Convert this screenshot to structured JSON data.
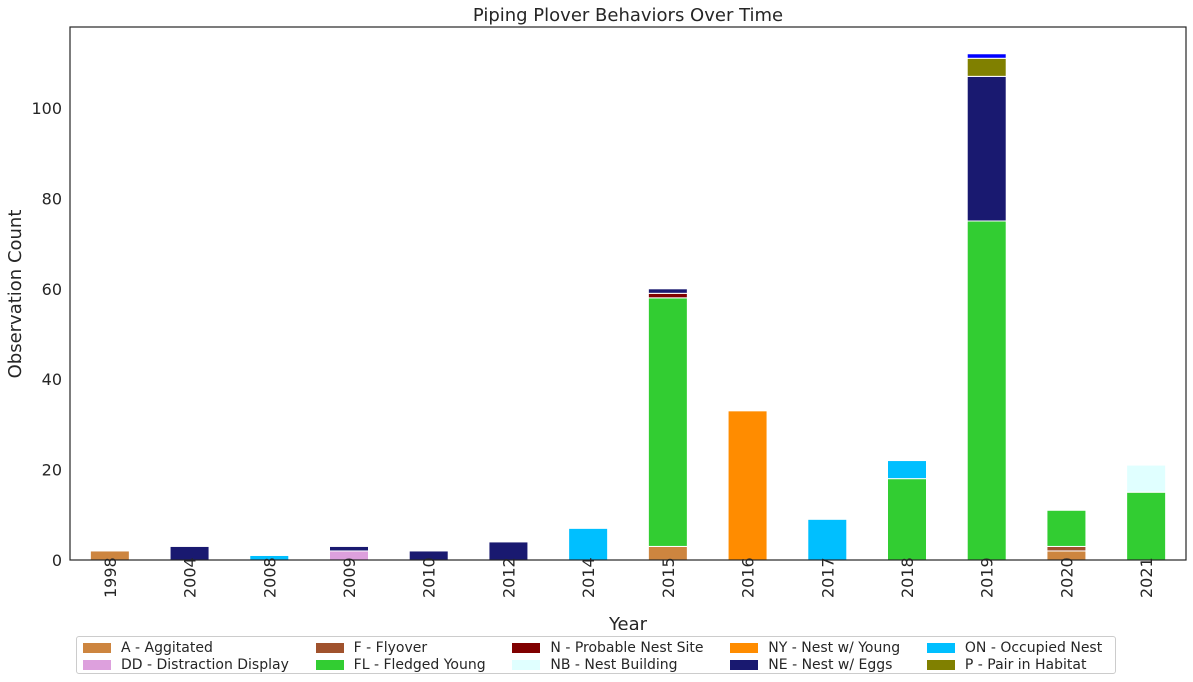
{
  "chart_data": {
    "type": "bar",
    "stacked": true,
    "title": "Piping Plover Behaviors Over Time",
    "xlabel": "Year",
    "ylabel": "Observation Count",
    "ylim": [
      0,
      118
    ],
    "yticks": [
      0,
      20,
      40,
      60,
      80,
      100
    ],
    "grid": false,
    "legend_position": "bottom",
    "categories": [
      "1998",
      "2004",
      "2008",
      "2009",
      "2010",
      "2012",
      "2014",
      "2015",
      "2016",
      "2017",
      "2018",
      "2019",
      "2020",
      "2021"
    ],
    "series": [
      {
        "name": "A - Aggitated",
        "color": "#cd853f",
        "values": [
          2,
          0,
          0,
          0,
          0,
          0,
          0,
          3,
          0,
          0,
          0,
          0,
          2,
          0
        ]
      },
      {
        "name": "DD - Distraction Display",
        "color": "#dda0dd",
        "values": [
          0,
          0,
          0,
          2,
          0,
          0,
          0,
          0,
          0,
          0,
          0,
          0,
          0,
          0
        ]
      },
      {
        "name": "F - Flyover",
        "color": "#a0522d",
        "values": [
          0,
          0,
          0,
          0,
          0,
          0,
          0,
          0,
          0,
          0,
          0,
          0,
          1,
          0
        ]
      },
      {
        "name": "FL - Fledged Young",
        "color": "#32cd32",
        "values": [
          0,
          0,
          0,
          0,
          0,
          0,
          0,
          55,
          0,
          0,
          18,
          75,
          8,
          15
        ]
      },
      {
        "name": "N - Probable Nest Site",
        "color": "#800000",
        "values": [
          0,
          0,
          0,
          0,
          0,
          0,
          0,
          1,
          0,
          0,
          0,
          0,
          0,
          0
        ]
      },
      {
        "name": "NB - Nest Building",
        "color": "#e0ffff",
        "values": [
          0,
          0,
          0,
          0,
          0,
          0,
          0,
          0,
          0,
          0,
          0,
          0,
          0,
          6
        ]
      },
      {
        "name": "NY - Nest w/ Young",
        "color": "#ff8c00",
        "values": [
          0,
          0,
          0,
          0,
          0,
          0,
          0,
          0,
          33,
          0,
          0,
          0,
          0,
          0
        ]
      },
      {
        "name": "NE - Nest w/ Eggs",
        "color": "#191970",
        "values": [
          0,
          3,
          0,
          1,
          2,
          4,
          0,
          1,
          0,
          0,
          0,
          32,
          0,
          0
        ]
      },
      {
        "name": "ON - Occupied Nest",
        "color": "#00bfff",
        "values": [
          0,
          0,
          1,
          0,
          0,
          0,
          7,
          0,
          0,
          9,
          4,
          0,
          0,
          0
        ]
      },
      {
        "name": "P - Pair in Habitat",
        "color": "#808000",
        "values": [
          0,
          0,
          0,
          0,
          0,
          0,
          0,
          0,
          0,
          0,
          0,
          4,
          0,
          0
        ]
      },
      {
        "color": "#0000ff",
        "values": [
          0,
          0,
          0,
          0,
          0,
          0,
          0,
          0,
          0,
          0,
          0,
          1,
          0,
          0
        ]
      }
    ]
  }
}
